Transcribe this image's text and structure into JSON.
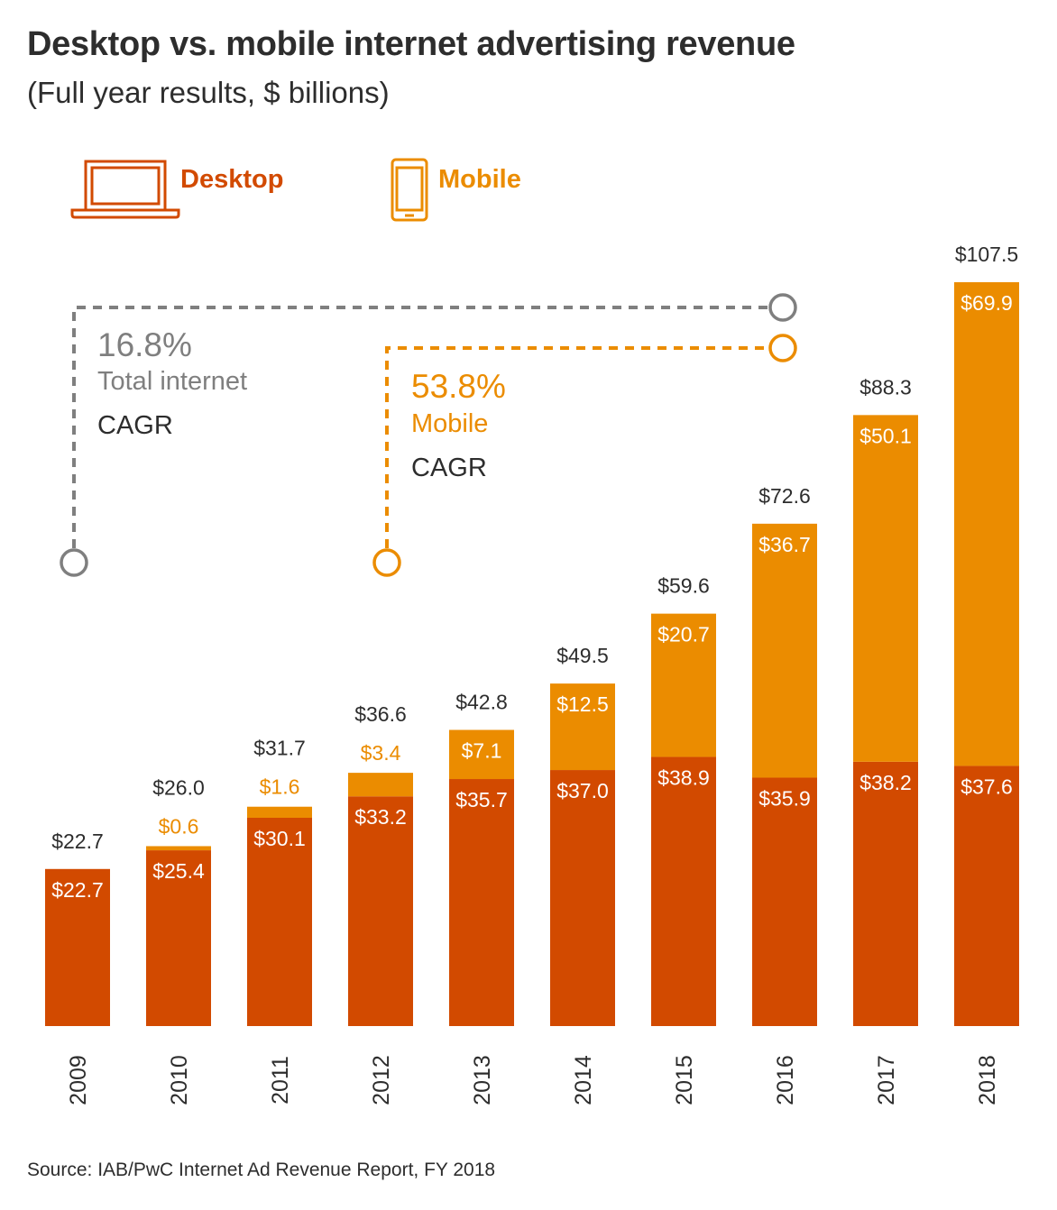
{
  "chart_data": {
    "type": "bar",
    "stacked": true,
    "title": "Desktop vs. mobile internet advertising revenue",
    "subtitle": "(Full year results, $ billions)",
    "categories": [
      "2009",
      "2010",
      "2011",
      "2012",
      "2013",
      "2014",
      "2015",
      "2016",
      "2017",
      "2018"
    ],
    "series": [
      {
        "name": "Desktop",
        "color": "#d24a00",
        "icon": "laptop-icon",
        "values": [
          22.7,
          25.4,
          30.1,
          33.2,
          35.7,
          37.0,
          38.9,
          35.9,
          38.2,
          37.6
        ],
        "labels": [
          "$22.7",
          "$25.4",
          "$30.1",
          "$33.2",
          "$35.7",
          "$37.0",
          "$38.9",
          "$35.9",
          "$38.2",
          "$37.6"
        ]
      },
      {
        "name": "Mobile",
        "color": "#eb8c00",
        "icon": "smartphone-icon",
        "values": [
          0,
          0.6,
          1.6,
          3.4,
          7.1,
          12.5,
          20.7,
          36.7,
          50.1,
          69.9
        ],
        "labels": [
          "",
          "$0.6",
          "$1.6",
          "$3.4",
          "$7.1",
          "$12.5",
          "$20.7",
          "$36.7",
          "$50.1",
          "$69.9"
        ]
      }
    ],
    "totals": [
      22.7,
      26.0,
      31.7,
      36.6,
      42.8,
      49.5,
      59.6,
      72.6,
      88.3,
      107.5
    ],
    "total_labels": [
      "$22.7",
      "$26.0",
      "$31.7",
      "$36.6",
      "$42.8",
      "$49.5",
      "$59.6",
      "$72.6",
      "$88.3",
      "$107.5"
    ],
    "ylim": [
      0,
      107.5
    ],
    "grid": false,
    "legend_position": "top-left",
    "annotations": [
      {
        "value": "16.8%",
        "name": "Total internet",
        "suffix": "CAGR",
        "color": "#7f7f7f",
        "from": "2009",
        "to": "2018"
      },
      {
        "value": "53.8%",
        "name": "Mobile",
        "suffix": "CAGR",
        "color": "#eb8c00",
        "from": "2012",
        "to": "2018"
      }
    ],
    "source": "Source: IAB/PwC Internet Ad Revenue Report,  FY 2018"
  }
}
